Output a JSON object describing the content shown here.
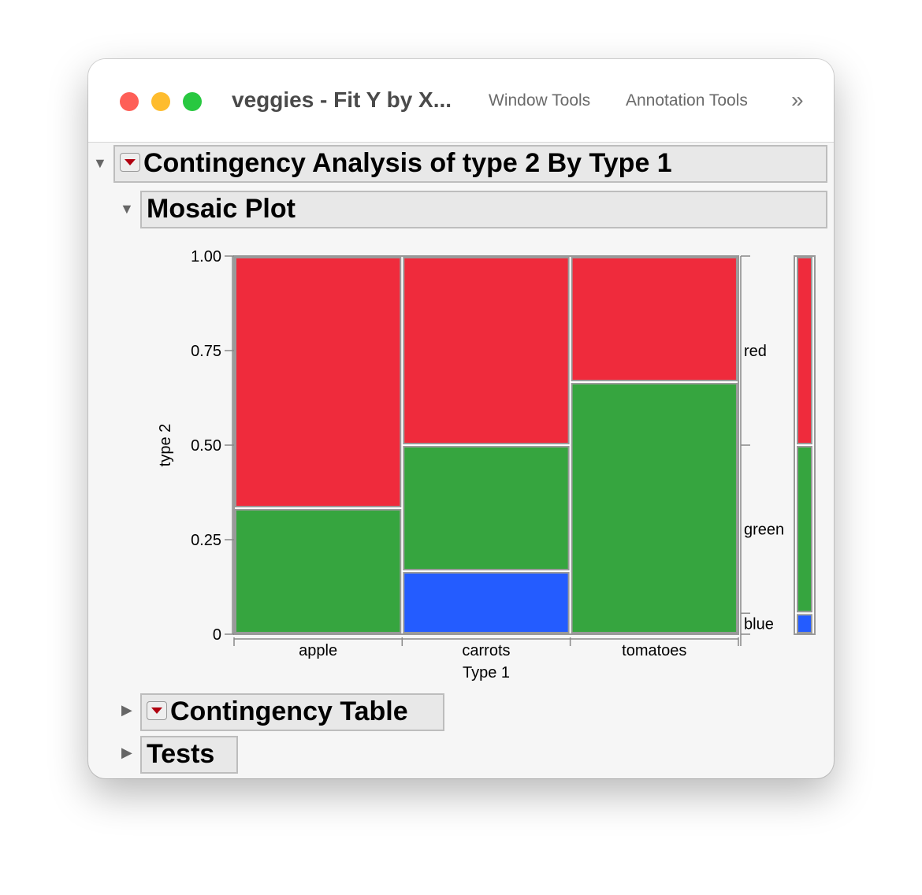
{
  "window": {
    "title": "veggies - Fit Y by X...",
    "tools": [
      "Window Tools",
      "Annotation Tools"
    ],
    "more_icon": "chevron-double-right-icon"
  },
  "report": {
    "title": "Contingency Analysis of type 2 By Type 1",
    "mosaic_title": "Mosaic Plot",
    "table_title": "Contingency Table",
    "tests_title": "Tests"
  },
  "colors": {
    "red": "#ef2b3c",
    "green": "#36a53f",
    "blue": "#245cff"
  },
  "chart_data": {
    "type": "mosaic",
    "xlabel": "Type 1",
    "ylabel": "type 2",
    "ylim": [
      0,
      1
    ],
    "yticks": [
      "0",
      "0.25",
      "0.50",
      "0.75",
      "1.00"
    ],
    "categories": [
      "apple",
      "carrots",
      "tomatoes"
    ],
    "column_widths": [
      0.3333,
      0.3333,
      0.3333
    ],
    "series": [
      {
        "name": "blue",
        "values": [
          0,
          0.1667,
          0
        ]
      },
      {
        "name": "green",
        "values": [
          0.3333,
          0.3333,
          0.6667
        ]
      },
      {
        "name": "red",
        "values": [
          0.6667,
          0.5,
          0.3333
        ]
      }
    ],
    "marginal": {
      "blue": 0.0556,
      "green": 0.4444,
      "red": 0.5
    }
  }
}
